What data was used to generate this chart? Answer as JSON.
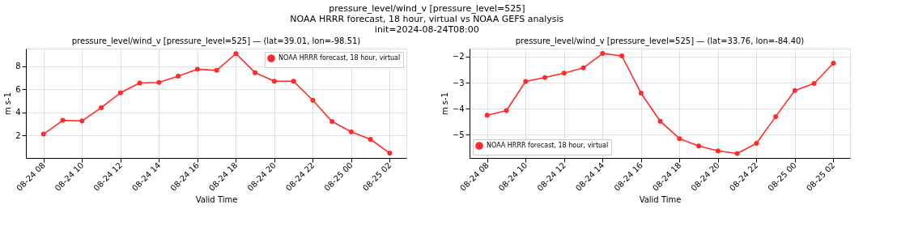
{
  "chart_data": [
    {
      "type": "line",
      "title": "pressure_level/wind_v [pressure_level=525]\nNOAA HRRR forecast, 18 hour, virtual vs NOAA GEFS analysis\ninit=2024-08-24T08:00",
      "subtitle": "pressure_level/wind_v [pressure_level=525] — (lat=39.01, lon=-98.51)",
      "xlabel": "Valid Time",
      "ylabel": "m s-1",
      "x": [
        "2024-08-24T08:00",
        "2024-08-24T09:00",
        "2024-08-24T10:00",
        "2024-08-24T11:00",
        "2024-08-24T12:00",
        "2024-08-24T13:00",
        "2024-08-24T14:00",
        "2024-08-24T15:00",
        "2024-08-24T16:00",
        "2024-08-24T17:00",
        "2024-08-24T18:00",
        "2024-08-24T19:00",
        "2024-08-24T20:00",
        "2024-08-24T21:00",
        "2024-08-24T22:00",
        "2024-08-24T23:00",
        "2024-08-25T00:00",
        "2024-08-25T01:00",
        "2024-08-25T02:00"
      ],
      "series": [
        {
          "name": "NOAA HRRR forecast, 18 hour, virtual",
          "color": "#ff2a2a",
          "values": [
            2.1,
            3.3,
            3.25,
            4.4,
            5.7,
            6.55,
            6.6,
            7.15,
            7.75,
            7.65,
            9.1,
            7.45,
            6.7,
            6.7,
            5.05,
            3.2,
            2.3,
            1.65,
            0.45
          ]
        }
      ],
      "xlim": [
        "2024-08-24T07:05",
        "2024-08-25T02:52"
      ],
      "ylim": [
        0.03,
        9.54
      ],
      "yticks": [
        2,
        4,
        6,
        8
      ],
      "xticks": [
        {
          "value": "2024-08-24T08:00",
          "label": "08-24 08"
        },
        {
          "value": "2024-08-24T10:00",
          "label": "08-24 10"
        },
        {
          "value": "2024-08-24T12:00",
          "label": "08-24 12"
        },
        {
          "value": "2024-08-24T14:00",
          "label": "08-24 14"
        },
        {
          "value": "2024-08-24T16:00",
          "label": "08-24 16"
        },
        {
          "value": "2024-08-24T18:00",
          "label": "08-24 18"
        },
        {
          "value": "2024-08-24T20:00",
          "label": "08-24 20"
        },
        {
          "value": "2024-08-24T22:00",
          "label": "08-24 22"
        },
        {
          "value": "2024-08-25T00:00",
          "label": "08-25 00"
        },
        {
          "value": "2024-08-25T02:00",
          "label": "08-25 02"
        }
      ],
      "grid": true,
      "legend": "top right",
      "marker": "circle",
      "line_style": "solid"
    },
    {
      "type": "line",
      "subtitle": "pressure_level/wind_v [pressure_level=525] — (lat=33.76, lon=-84.40)",
      "xlabel": "Valid Time",
      "ylabel": "m s-1",
      "x": [
        "2024-08-24T08:00",
        "2024-08-24T09:00",
        "2024-08-24T10:00",
        "2024-08-24T11:00",
        "2024-08-24T12:00",
        "2024-08-24T13:00",
        "2024-08-24T14:00",
        "2024-08-24T15:00",
        "2024-08-24T16:00",
        "2024-08-24T17:00",
        "2024-08-24T18:00",
        "2024-08-24T19:00",
        "2024-08-24T20:00",
        "2024-08-24T21:00",
        "2024-08-24T22:00",
        "2024-08-24T23:00",
        "2024-08-25T00:00",
        "2024-08-25T01:00",
        "2024-08-25T02:00"
      ],
      "series": [
        {
          "name": "NOAA HRRR forecast, 18 hour, virtual",
          "color": "#ff2a2a",
          "values": [
            -4.25,
            -4.07,
            -2.95,
            -2.8,
            -2.63,
            -2.43,
            -1.88,
            -1.97,
            -3.4,
            -4.48,
            -5.15,
            -5.43,
            -5.62,
            -5.72,
            -5.33,
            -4.3,
            -3.3,
            -3.03,
            -2.25
          ]
        }
      ],
      "xlim": [
        "2024-08-24T07:05",
        "2024-08-25T02:52"
      ],
      "ylim": [
        -5.89,
        -1.69
      ],
      "yticks": [
        {
          "value": -5,
          "label": "−5"
        },
        {
          "value": -4,
          "label": "−4"
        },
        {
          "value": -3,
          "label": "−3"
        },
        {
          "value": -2,
          "label": "−2"
        }
      ],
      "xticks": [
        {
          "value": "2024-08-24T08:00",
          "label": "08-24 08"
        },
        {
          "value": "2024-08-24T10:00",
          "label": "08-24 10"
        },
        {
          "value": "2024-08-24T12:00",
          "label": "08-24 12"
        },
        {
          "value": "2024-08-24T14:00",
          "label": "08-24 14"
        },
        {
          "value": "2024-08-24T16:00",
          "label": "08-24 16"
        },
        {
          "value": "2024-08-24T18:00",
          "label": "08-24 18"
        },
        {
          "value": "2024-08-24T20:00",
          "label": "08-24 20"
        },
        {
          "value": "2024-08-24T22:00",
          "label": "08-24 22"
        },
        {
          "value": "2024-08-25T00:00",
          "label": "08-25 00"
        },
        {
          "value": "2024-08-25T02:00",
          "label": "08-25 02"
        }
      ],
      "grid": true,
      "legend": "bottom left",
      "marker": "circle",
      "line_style": "solid"
    }
  ]
}
